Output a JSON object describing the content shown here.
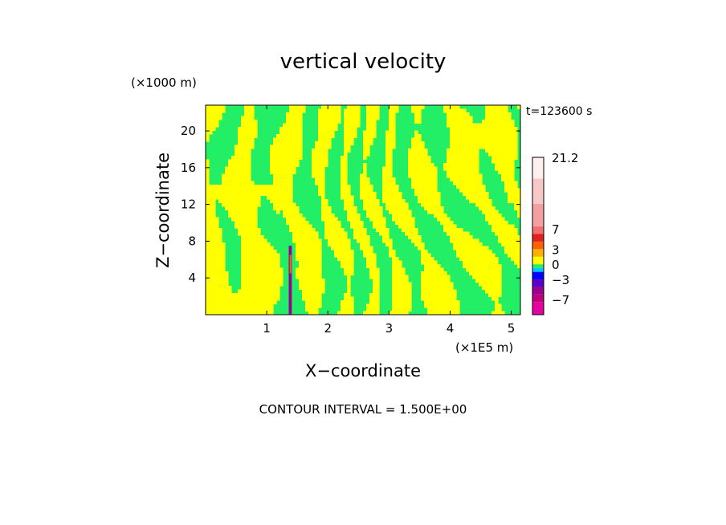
{
  "chart_data": {
    "type": "heatmap",
    "title": "vertical velocity",
    "time_label": "t=123600 s",
    "xlabel": "X−coordinate",
    "ylabel": "Z−coordinate",
    "x_unit": "(×1E5 m)",
    "y_unit": "(×1000 m)",
    "xlim": [
      0,
      5.15
    ],
    "ylim": [
      0,
      22.8
    ],
    "x_ticks": [
      1,
      2,
      3,
      4,
      5
    ],
    "y_ticks": [
      4,
      8,
      12,
      16,
      20
    ],
    "contour_interval_label": "CONTOUR INTERVAL = 1.500E+00",
    "colorbar": {
      "min": -10,
      "max": 21.2,
      "labels": [
        {
          "value": 21.2,
          "text": "21.2"
        },
        {
          "value": 7,
          "text": "7"
        },
        {
          "value": 3,
          "text": "3"
        },
        {
          "value": 0,
          "text": "0"
        },
        {
          "value": -3,
          "text": "−3"
        },
        {
          "value": -7,
          "text": "−7"
        }
      ],
      "levels": [
        {
          "from": -10,
          "to": -7.5,
          "color": "#e600a0"
        },
        {
          "from": -7.5,
          "to": -6,
          "color": "#c0007a"
        },
        {
          "from": -6,
          "to": -4.5,
          "color": "#9a0090"
        },
        {
          "from": -4.5,
          "to": -3,
          "color": "#5a00c8"
        },
        {
          "from": -3,
          "to": -1.5,
          "color": "#0000ff"
        },
        {
          "from": -1.5,
          "to": -0.75,
          "color": "#00c8ff"
        },
        {
          "from": -0.75,
          "to": 0,
          "color": "#22ee66"
        },
        {
          "from": 0,
          "to": 1.5,
          "color": "#ffff00"
        },
        {
          "from": 1.5,
          "to": 3,
          "color": "#ffb000"
        },
        {
          "from": 3,
          "to": 4.5,
          "color": "#ff6000"
        },
        {
          "from": 4.5,
          "to": 6,
          "color": "#e02020"
        },
        {
          "from": 6,
          "to": 7.5,
          "color": "#f07070"
        },
        {
          "from": 7.5,
          "to": 12,
          "color": "#f4a0a0"
        },
        {
          "from": 12,
          "to": 17,
          "color": "#f8c8c8"
        },
        {
          "from": 17,
          "to": 21.2,
          "color": "#fff0f0"
        }
      ]
    },
    "field_colors": {
      "positive": "#ffff00",
      "negative": "#22ee66"
    },
    "grid": false
  }
}
